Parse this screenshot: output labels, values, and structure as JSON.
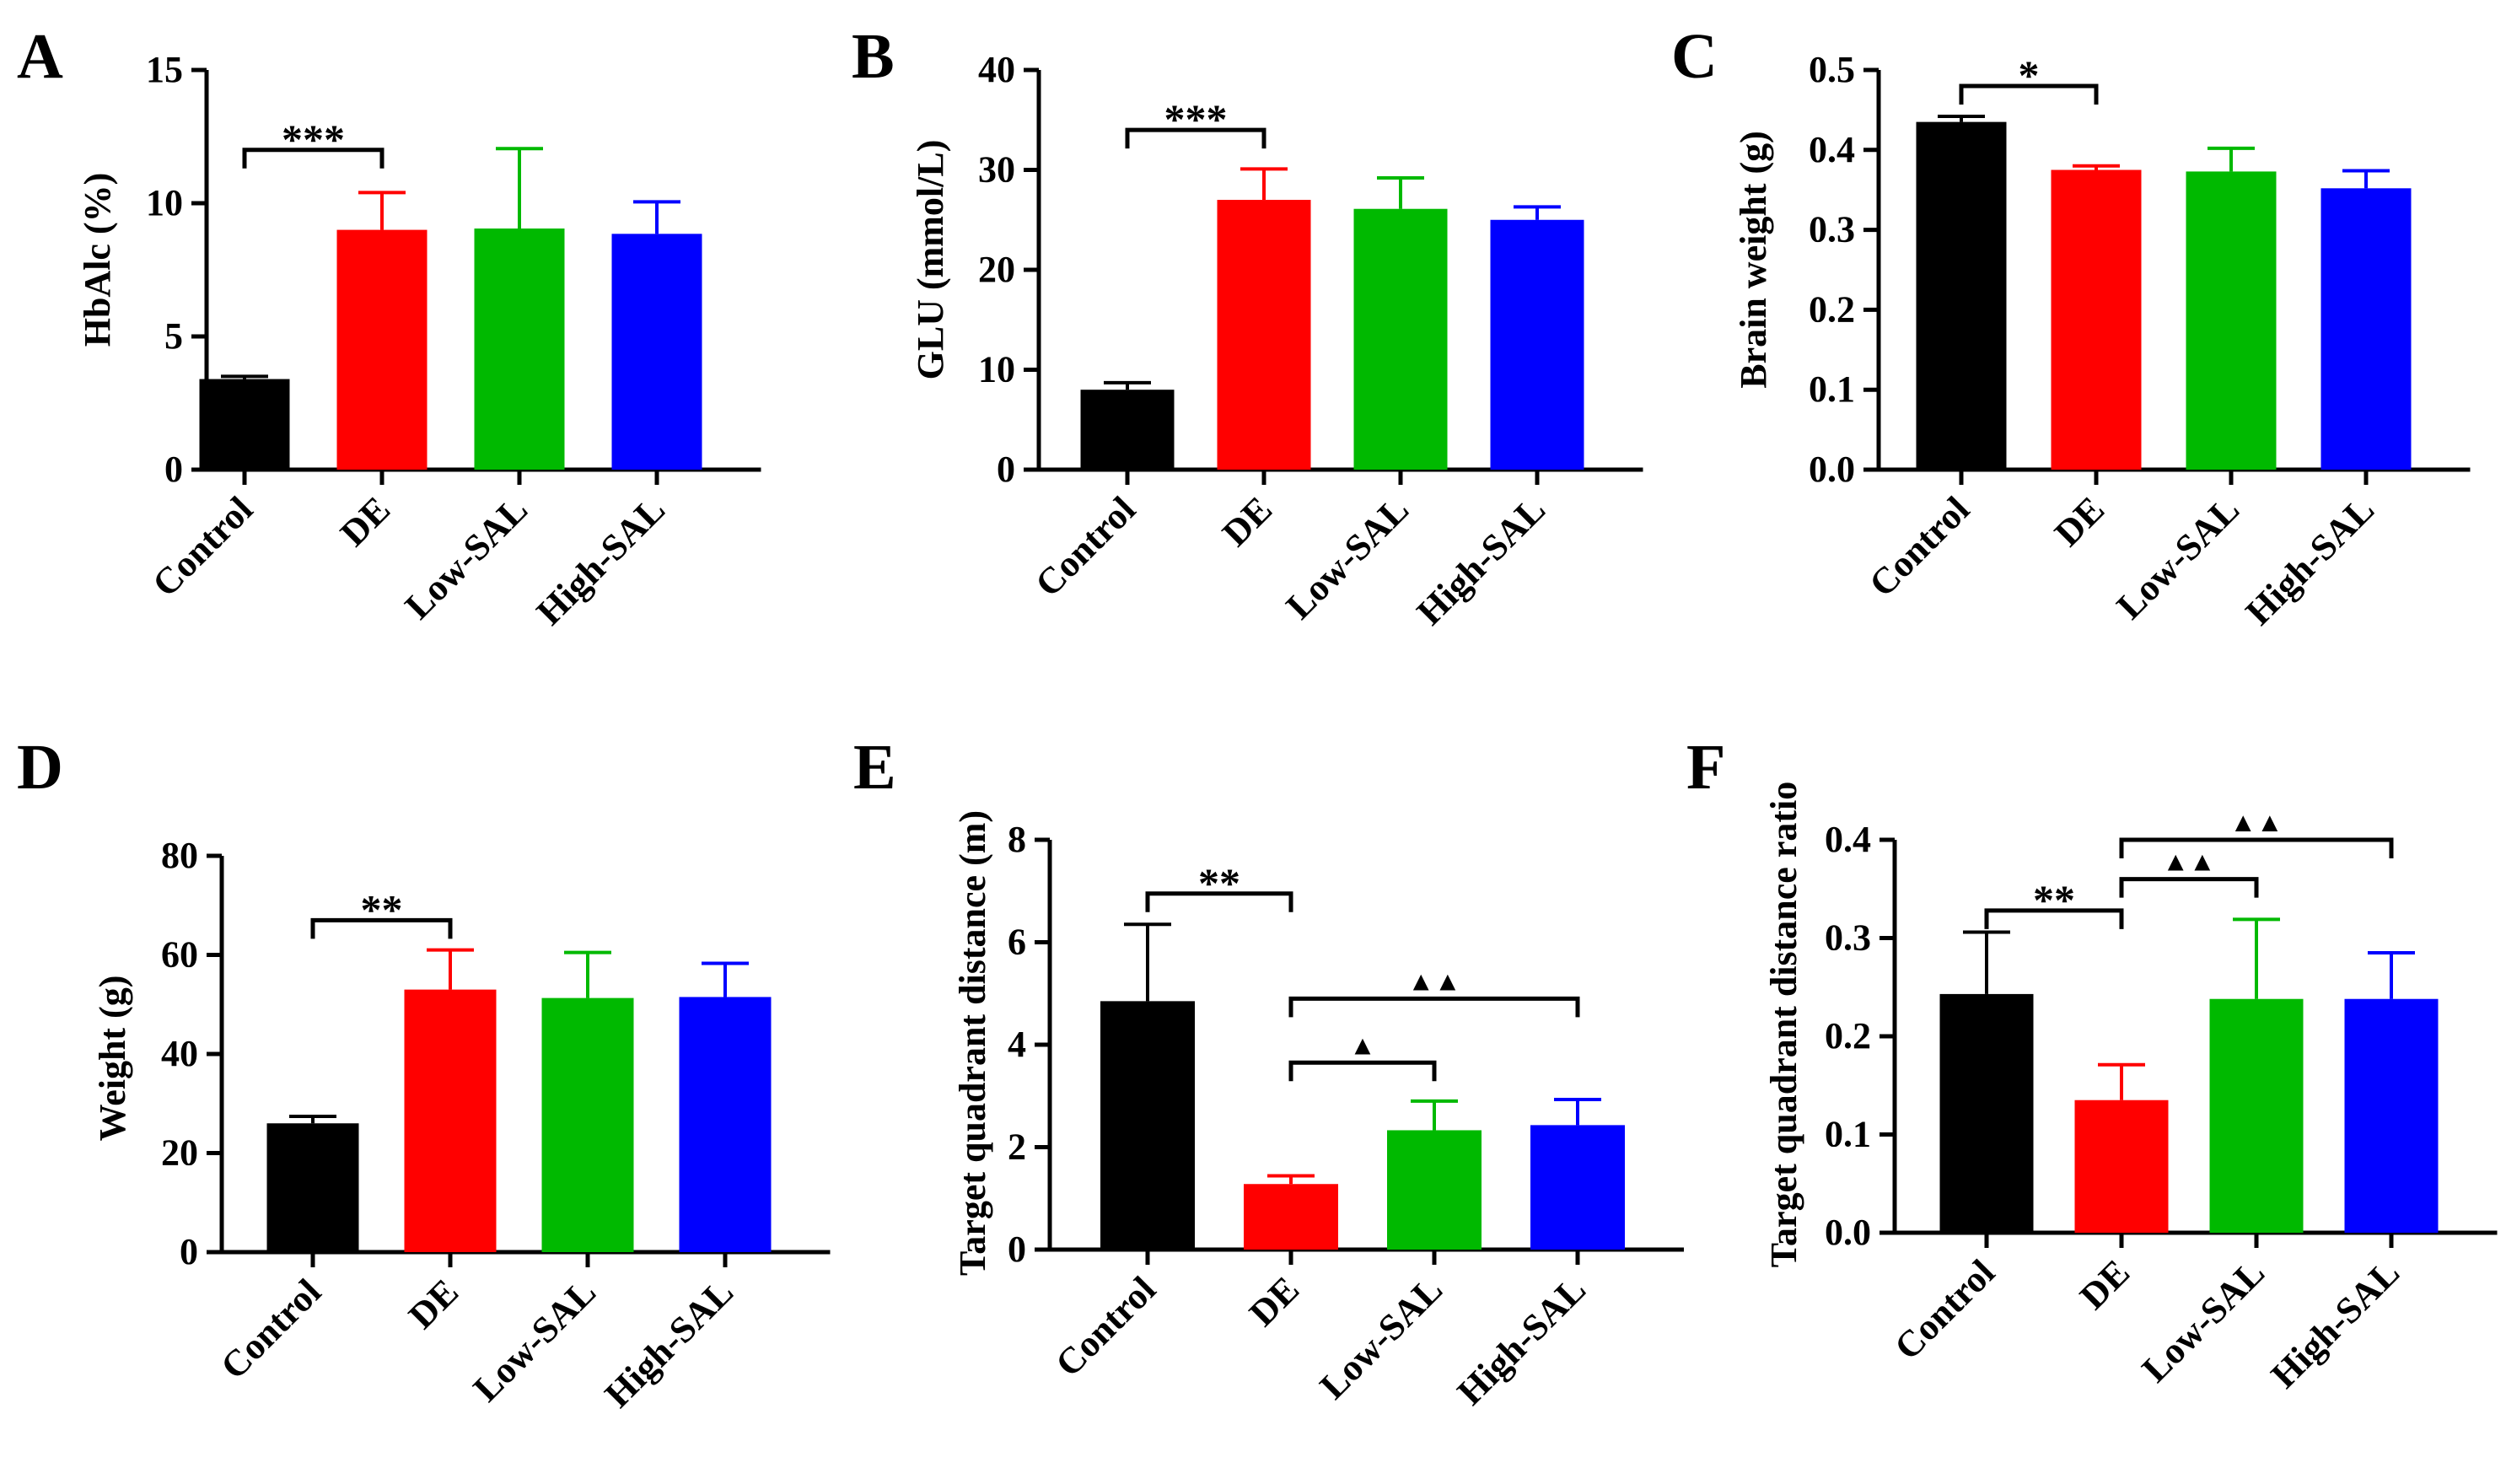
{
  "colors": {
    "Control": "#000000",
    "DE": "#ff0000",
    "Low-SAL": "#00b900",
    "High-SAL": "#0000ff"
  },
  "chart_data": [
    {
      "panel": "A",
      "type": "bar",
      "categories": [
        "Control",
        "DE",
        "Low-SAL",
        "High-SAL"
      ],
      "values": [
        3.4,
        9.0,
        9.05,
        8.85
      ],
      "errors": [
        0.1,
        1.4,
        3.0,
        1.2
      ],
      "ylabel": "HbAlc (%)",
      "ylim": [
        0,
        15
      ],
      "yticks": [
        0,
        5,
        10,
        15
      ],
      "ytick_labels": [
        "0",
        "5",
        "10",
        "15"
      ],
      "annotations": [
        {
          "from": 0,
          "to": 1,
          "level": 12.0,
          "label": "***"
        }
      ]
    },
    {
      "panel": "B",
      "type": "bar",
      "categories": [
        "Control",
        "DE",
        "Low-SAL",
        "High-SAL"
      ],
      "values": [
        8.0,
        27.0,
        26.1,
        25.0
      ],
      "errors": [
        0.7,
        3.1,
        3.1,
        1.3
      ],
      "ylabel": "GLU (mmol/L)",
      "ylim": [
        0,
        40
      ],
      "yticks": [
        0,
        10,
        20,
        30,
        40
      ],
      "ytick_labels": [
        "0",
        "10",
        "20",
        "30",
        "40"
      ],
      "annotations": [
        {
          "from": 0,
          "to": 1,
          "level": 34.0,
          "label": "***"
        }
      ]
    },
    {
      "panel": "C",
      "type": "bar",
      "categories": [
        "Control",
        "DE",
        "Low-SAL",
        "High-SAL"
      ],
      "values": [
        0.435,
        0.375,
        0.373,
        0.352
      ],
      "errors": [
        0.007,
        0.005,
        0.029,
        0.022
      ],
      "ylabel": "Brain weight (g)",
      "ylim": [
        0,
        0.5
      ],
      "yticks": [
        0,
        0.1,
        0.2,
        0.3,
        0.4,
        0.5
      ],
      "ytick_labels": [
        "0.0",
        "0.1",
        "0.2",
        "0.3",
        "0.4",
        "0.5"
      ],
      "annotations": [
        {
          "from": 0,
          "to": 1,
          "level": 0.48,
          "label": "*"
        }
      ]
    },
    {
      "panel": "D",
      "type": "bar",
      "categories": [
        "Control",
        "DE",
        "Low-SAL",
        "High-SAL"
      ],
      "values": [
        26.0,
        53.0,
        51.3,
        51.5
      ],
      "errors": [
        1.4,
        8.0,
        9.2,
        6.8
      ],
      "ylabel": "Weight (g)",
      "ylim": [
        0,
        80
      ],
      "yticks": [
        0,
        20,
        40,
        60,
        80
      ],
      "ytick_labels": [
        "0",
        "20",
        "40",
        "60",
        "80"
      ],
      "annotations": [
        {
          "from": 0,
          "to": 1,
          "level": 67.0,
          "label": "**"
        }
      ]
    },
    {
      "panel": "E",
      "type": "bar",
      "categories": [
        "Control",
        "DE",
        "Low-SAL",
        "High-SAL"
      ],
      "values": [
        4.85,
        1.28,
        2.33,
        2.43
      ],
      "errors": [
        1.5,
        0.16,
        0.57,
        0.5
      ],
      "ylabel": "Target quadrant distance (m)",
      "ylim": [
        0,
        8
      ],
      "yticks": [
        0,
        2,
        4,
        6,
        8
      ],
      "ytick_labels": [
        "0",
        "2",
        "4",
        "6",
        "8"
      ],
      "annotations": [
        {
          "from": 0,
          "to": 1,
          "level": 6.95,
          "label": "**"
        },
        {
          "from": 1,
          "to": 2,
          "level": 3.65,
          "label": "▲"
        },
        {
          "from": 1,
          "to": 3,
          "level": 4.9,
          "label": "▲▲"
        }
      ]
    },
    {
      "panel": "F",
      "type": "bar",
      "categories": [
        "Control",
        "DE",
        "Low-SAL",
        "High-SAL"
      ],
      "values": [
        0.243,
        0.135,
        0.238,
        0.238
      ],
      "errors": [
        0.063,
        0.036,
        0.081,
        0.047
      ],
      "ylabel": "Target quadrant distance ratio",
      "ylim": [
        0,
        0.4
      ],
      "yticks": [
        0,
        0.1,
        0.2,
        0.3,
        0.4
      ],
      "ytick_labels": [
        "0.0",
        "0.1",
        "0.2",
        "0.3",
        "0.4"
      ],
      "annotations": [
        {
          "from": 0,
          "to": 1,
          "level": 0.328,
          "label": "**"
        },
        {
          "from": 1,
          "to": 2,
          "level": 0.36,
          "label": "▲▲"
        },
        {
          "from": 1,
          "to": 3,
          "level": 0.4,
          "label": "▲▲"
        }
      ]
    }
  ]
}
